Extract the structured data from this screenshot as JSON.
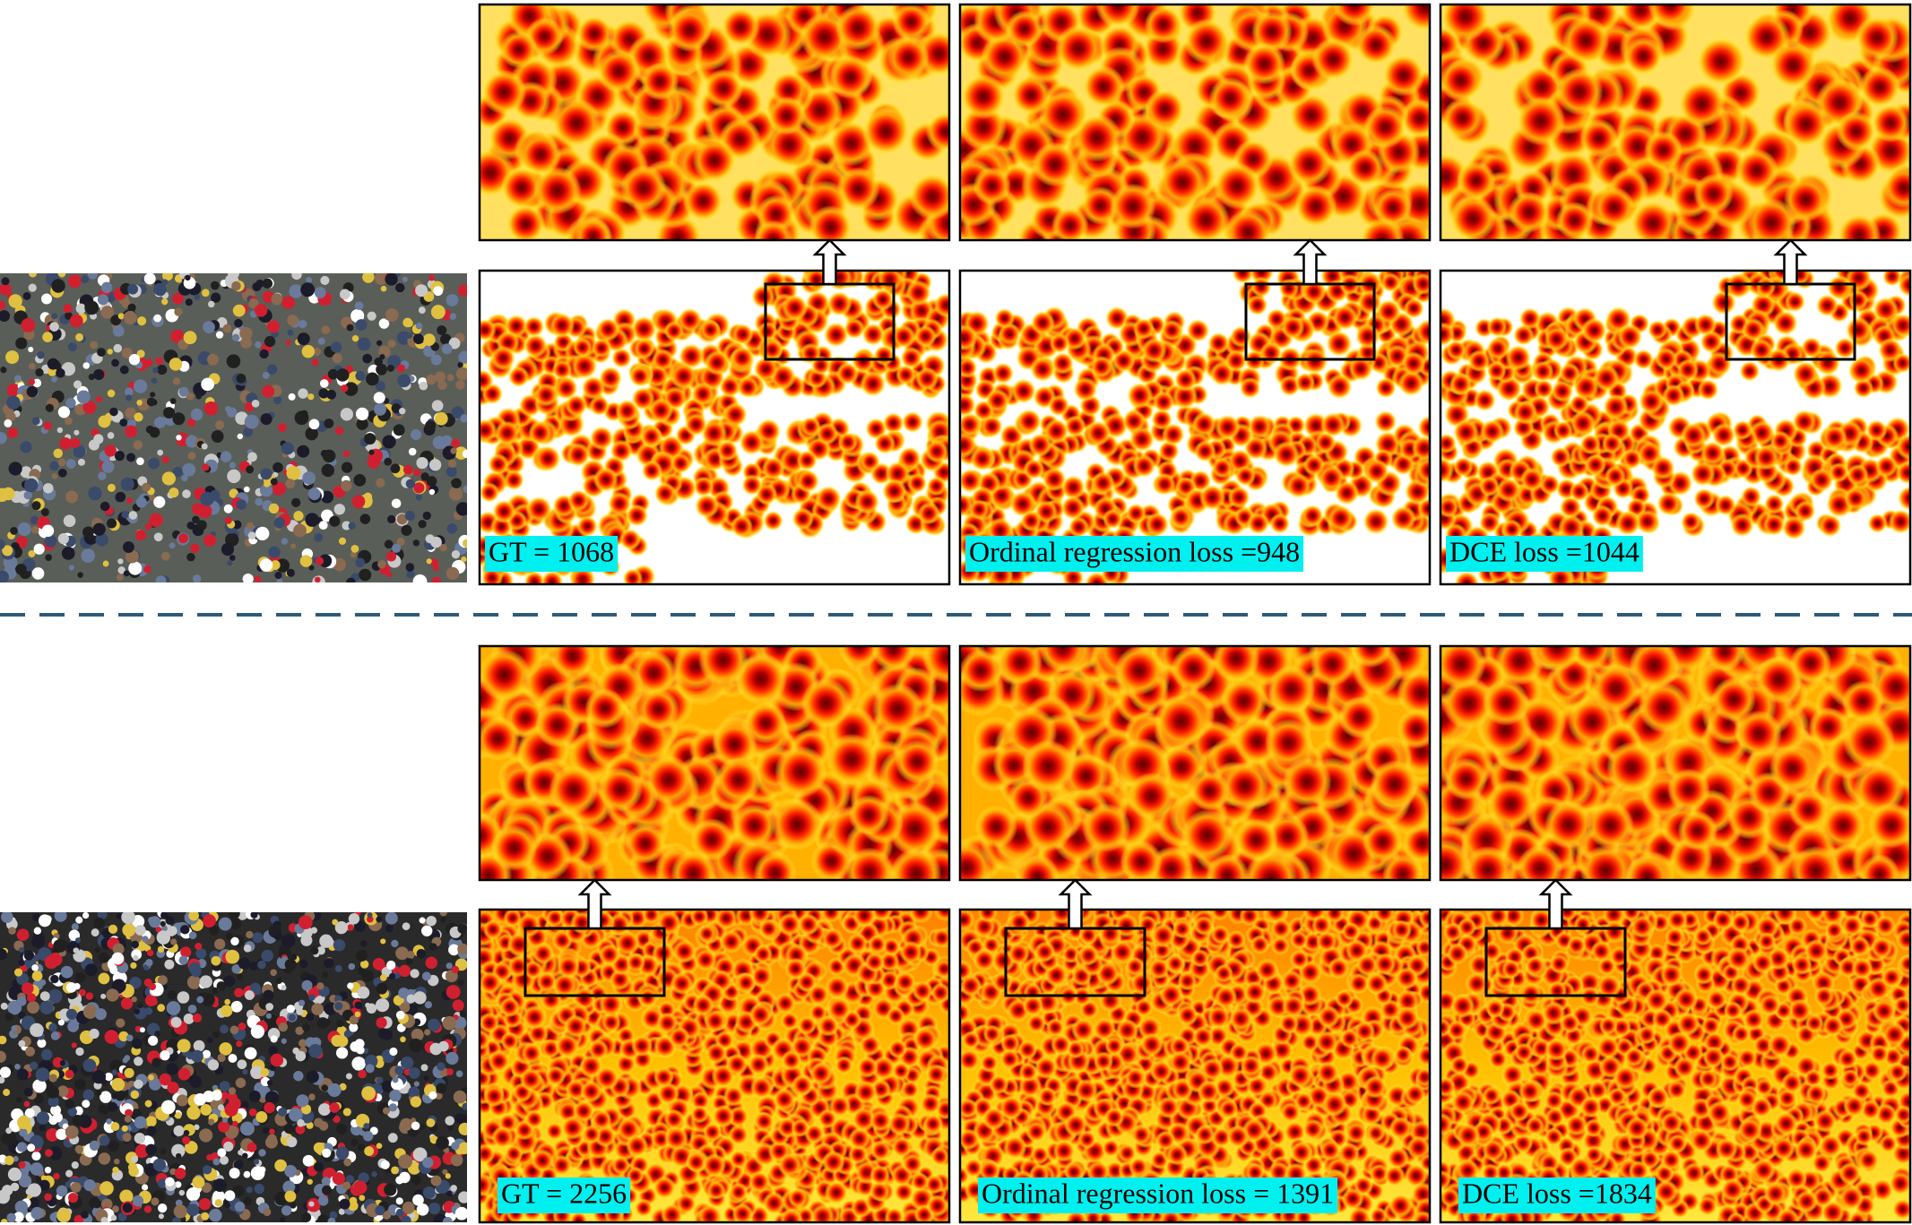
{
  "rows": [
    {
      "labels": [
        "GT = 1068",
        "Ordinal regression loss =948",
        "DCE loss =1044"
      ]
    },
    {
      "labels": [
        "GT = 2256",
        "Ordinal regression loss = 1391",
        "DCE loss =1834"
      ]
    }
  ]
}
